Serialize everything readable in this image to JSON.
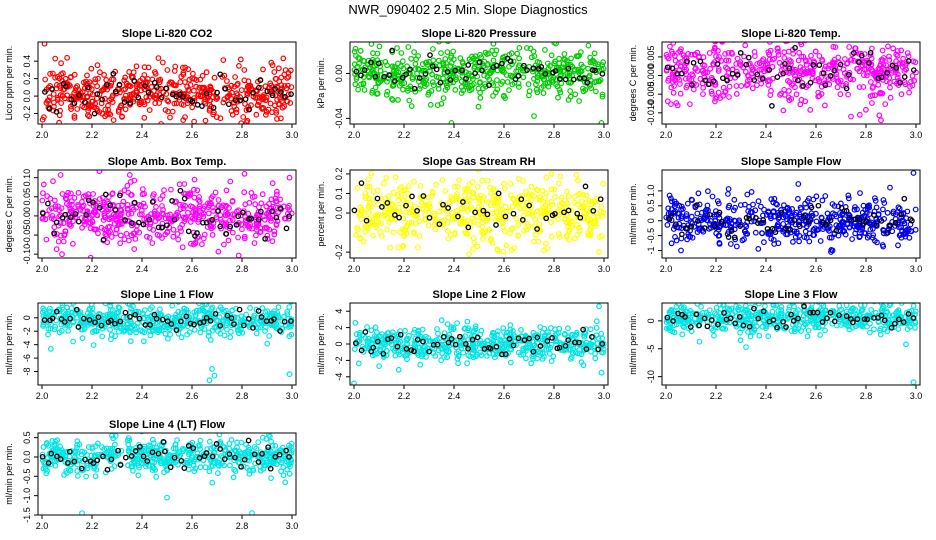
{
  "figure": {
    "title": "NWR_090402  2.5 Min. Slope Diagnostics"
  },
  "chart_data": [
    {
      "type": "scatter",
      "title": "Slope Li-820 CO2",
      "ylabel": "Licor ppm per min.",
      "xlim": [
        2.0,
        3.0
      ],
      "ylim": [
        -0.32,
        0.62
      ],
      "xticks": [
        2.0,
        2.2,
        2.4,
        2.6,
        2.8,
        3.0
      ],
      "yticks": [
        -0.2,
        0.0,
        0.2,
        0.4
      ],
      "ytick_labels": [
        "-0.2",
        "0.0",
        "0.2",
        "0.4"
      ],
      "color": "#ff0000",
      "n_points": 520,
      "center": 0.03,
      "spread": 0.15,
      "outliers": [
        [
          2.01,
          0.6
        ],
        [
          2.32,
          -0.24
        ],
        [
          2.13,
          -0.25
        ]
      ],
      "black_points": 55
    },
    {
      "type": "scatter",
      "title": "Slope Li-820 Pressure",
      "ylabel": "kPa per min.",
      "xlim": [
        2.0,
        3.0
      ],
      "ylim": [
        -0.045,
        0.028
      ],
      "xticks": [
        2.0,
        2.2,
        2.4,
        2.6,
        2.8,
        3.0
      ],
      "yticks": [
        -0.04,
        0.0
      ],
      "ytick_labels": [
        "-0.04",
        "0.00"
      ],
      "color": "#00cc00",
      "n_points": 520,
      "center": 0.0,
      "spread": 0.011,
      "outliers": [
        [
          2.39,
          -0.044
        ],
        [
          2.99,
          -0.044
        ],
        [
          2.72,
          -0.038
        ]
      ],
      "black_points": 55
    },
    {
      "type": "scatter",
      "title": "Slope Li-820 Temp.",
      "ylabel": "degrees C per min.",
      "xlim": [
        2.0,
        3.0
      ],
      "ylim": [
        -0.013,
        0.009
      ],
      "xticks": [
        2.0,
        2.2,
        2.4,
        2.6,
        2.8,
        3.0
      ],
      "yticks": [
        -0.01,
        -0.005,
        0.0,
        0.005
      ],
      "ytick_labels": [
        "-0.010",
        "-0.005",
        "0.000",
        "0.005"
      ],
      "color": "#ff00ff",
      "n_points": 520,
      "center": 0.0015,
      "spread": 0.0042,
      "outliers": [
        [
          2.86,
          -0.012
        ],
        [
          2.74,
          -0.011
        ]
      ],
      "black_points": 55
    },
    {
      "type": "scatter",
      "title": "Slope Amb. Box Temp.",
      "ylabel": "degrees C per min.",
      "xlim": [
        2.0,
        3.0
      ],
      "ylim": [
        -0.11,
        0.12
      ],
      "xticks": [
        2.0,
        2.2,
        2.4,
        2.6,
        2.8,
        3.0
      ],
      "yticks": [
        -0.1,
        -0.05,
        0.0,
        0.05,
        0.1
      ],
      "ytick_labels": [
        "-0.10",
        "-0.05",
        "0.00",
        "0.05",
        "0.10"
      ],
      "color": "#ff00ff",
      "n_points": 520,
      "center": 0.0,
      "spread": 0.04,
      "outliers": [
        [
          2.81,
          0.11
        ],
        [
          2.99,
          0.1
        ],
        [
          2.08,
          -0.1
        ]
      ],
      "black_points": 55
    },
    {
      "type": "scatter",
      "title": "Slope Gas Stream RH",
      "ylabel": "percent per min.",
      "xlim": [
        2.0,
        3.0
      ],
      "ylim": [
        -0.23,
        0.22
      ],
      "xticks": [
        2.0,
        2.2,
        2.4,
        2.6,
        2.8,
        3.0
      ],
      "yticks": [
        -0.2,
        0.0,
        0.1,
        0.2
      ],
      "ytick_labels": [
        "-0.2",
        "0.0",
        "0.1",
        "0.2"
      ],
      "color": "#ffff00",
      "n_points": 520,
      "center": 0.0,
      "spread": 0.08,
      "outliers": [
        [
          2.79,
          0.2
        ],
        [
          2.46,
          -0.21
        ],
        [
          2.98,
          -0.2
        ]
      ],
      "black_points": 40
    },
    {
      "type": "scatter",
      "title": "Slope Sample Flow",
      "ylabel": "ml/min per min.",
      "xlim": [
        2.0,
        3.0
      ],
      "ylim": [
        -1.25,
        1.7
      ],
      "xticks": [
        2.0,
        2.2,
        2.4,
        2.6,
        2.8,
        3.0
      ],
      "yticks": [
        -1.0,
        -0.5,
        0.0,
        0.5,
        1.0
      ],
      "ytick_labels": [
        "-1",
        "-0.5",
        "0",
        "0.5",
        "1.0"
      ],
      "color": "#0000ee",
      "n_points": 520,
      "center": 0.0,
      "spread": 0.38,
      "outliers": [
        [
          2.99,
          1.6
        ],
        [
          2.66,
          -1.05
        ],
        [
          2.06,
          -1.0
        ]
      ],
      "black_points": 55
    },
    {
      "type": "scatter",
      "title": "Slope Line 1 Flow",
      "ylabel": "ml/min per min.",
      "xlim": [
        2.0,
        3.0
      ],
      "ylim": [
        -10.0,
        2.2
      ],
      "xticks": [
        2.0,
        2.2,
        2.4,
        2.6,
        2.8,
        3.0
      ],
      "yticks": [
        -8,
        -6,
        -4,
        -2,
        0
      ],
      "ytick_labels": [
        "-8",
        "-6",
        "-4",
        "-2",
        "0"
      ],
      "color": "#00e5e5",
      "n_points": 520,
      "center": -0.5,
      "spread": 1.2,
      "outliers": [
        [
          2.67,
          -9.3
        ],
        [
          2.69,
          -8.6
        ],
        [
          2.99,
          -8.4
        ],
        [
          2.68,
          -7.6
        ]
      ],
      "black_points": 55
    },
    {
      "type": "scatter",
      "title": "Slope Line 2 Flow",
      "ylabel": "ml/min per min.",
      "xlim": [
        2.0,
        3.0
      ],
      "ylim": [
        -5.0,
        5.0
      ],
      "xticks": [
        2.0,
        2.2,
        2.4,
        2.6,
        2.8,
        3.0
      ],
      "yticks": [
        -4,
        -2,
        0,
        2,
        4
      ],
      "ytick_labels": [
        "-4",
        "-2",
        "0",
        "2",
        "4"
      ],
      "color": "#00e5e5",
      "n_points": 520,
      "center": 0.0,
      "spread": 1.0,
      "outliers": [
        [
          2.0,
          -4.8
        ],
        [
          2.98,
          4.6
        ],
        [
          2.99,
          -3.5
        ]
      ],
      "black_points": 55
    },
    {
      "type": "scatter",
      "title": "Slope Line 3 Flow",
      "ylabel": "ml/min per min.",
      "xlim": [
        2.0,
        3.0
      ],
      "ylim": [
        -11.5,
        3.2
      ],
      "xticks": [
        2.0,
        2.2,
        2.4,
        2.6,
        2.8,
        3.0
      ],
      "yticks": [
        -10,
        -5,
        0
      ],
      "ytick_labels": [
        "-10",
        "-5",
        "0"
      ],
      "color": "#00e5e5",
      "n_points": 520,
      "center": 0.5,
      "spread": 1.3,
      "outliers": [
        [
          2.99,
          -11.0
        ],
        [
          2.32,
          -4.7
        ],
        [
          2.96,
          -4.2
        ]
      ],
      "black_points": 55
    },
    {
      "type": "scatter",
      "title": "Slope Line 4 (LT) Flow",
      "ylabel": "ml/min per min.",
      "xlim": [
        2.0,
        3.0
      ],
      "ylim": [
        -1.5,
        0.62
      ],
      "xticks": [
        2.0,
        2.2,
        2.4,
        2.6,
        2.8,
        3.0
      ],
      "yticks": [
        -1.5,
        -1.0,
        -0.5,
        0.0,
        0.5
      ],
      "ytick_labels": [
        "-1.5",
        "-1.0",
        "-0.5",
        "0.0",
        "0.5"
      ],
      "color": "#00e5e5",
      "n_points": 520,
      "center": 0.0,
      "spread": 0.22,
      "outliers": [
        [
          2.16,
          -1.45
        ],
        [
          2.84,
          -1.45
        ],
        [
          2.5,
          -1.05
        ],
        [
          2.28,
          0.55
        ]
      ],
      "black_points": 55
    }
  ]
}
